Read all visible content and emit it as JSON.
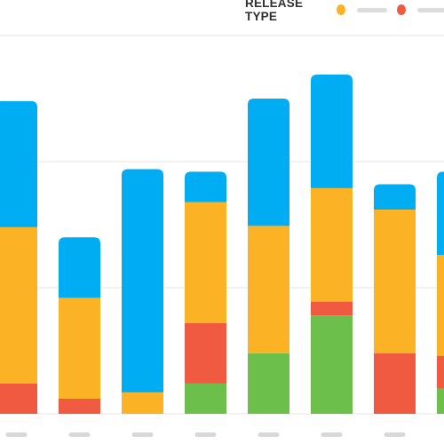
{
  "legend": {
    "title": "RELEASE TYPE",
    "entries": [
      {
        "color": "#fbb225"
      },
      {
        "color": "#f05a40"
      }
    ],
    "label_placeholder_color": "#dcdcdc"
  },
  "chart_data": {
    "type": "bar",
    "stacked": true,
    "grid": true,
    "ylim": [
      0,
      30
    ],
    "x_tick_labels_redacted": true,
    "categories": [
      "",
      "",
      "",
      "",
      "",
      "",
      "",
      ""
    ],
    "series": [
      {
        "color": "#6cbf4a",
        "values": [
          0,
          0,
          0,
          2.4,
          4.8,
          7.8,
          0,
          2
        ]
      },
      {
        "color": "#f05a40",
        "values": [
          2.4,
          1.2,
          0,
          4.8,
          0,
          1.1,
          4.8,
          2.6
        ]
      },
      {
        "color": "#fbb225",
        "values": [
          12.4,
          8,
          1.7,
          9.6,
          10.1,
          9,
          11.4,
          8
        ]
      },
      {
        "color": "#00acf2",
        "values": [
          10,
          4.8,
          17.7,
          2.4,
          10.1,
          9,
          2,
          6.6
        ]
      }
    ]
  },
  "colors": {
    "grid": "#e6e6e6",
    "tick_placeholder": "#d8d8d8"
  }
}
